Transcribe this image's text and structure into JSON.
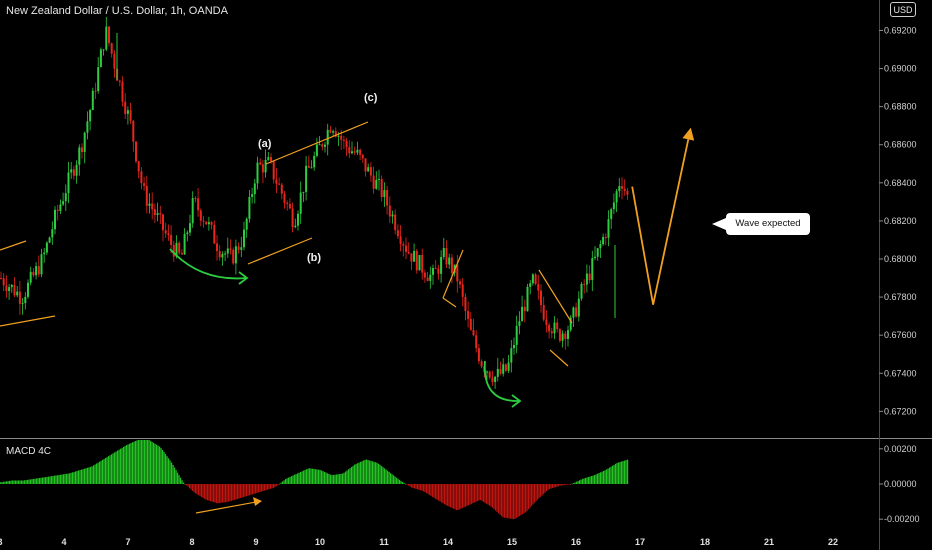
{
  "header": {
    "title": "New Zealand Dollar / U.S. Dollar, 1h, OANDA",
    "currency": "USD"
  },
  "indicator": {
    "name": "MACD 4C"
  },
  "annotations": {
    "callout": "Wave expected",
    "wave_a": "(a)",
    "wave_b": "(b)",
    "wave_c": "(c)"
  },
  "colors": {
    "bull": "#2ecc40",
    "bear": "#e8261c",
    "pattern": "#f0a020",
    "arrow_green": "#2ecc40",
    "macd_pos": "#22c322",
    "macd_neg": "#c0150f"
  },
  "chart_data": [
    {
      "type": "candlestick",
      "title": "New Zealand Dollar / U.S. Dollar, 1h, OANDA",
      "x_ticks": [
        "3",
        "4",
        "7",
        "8",
        "9",
        "10",
        "11",
        "14",
        "15",
        "16",
        "17",
        "18",
        "21",
        "22"
      ],
      "y_ticks": [
        "0.69200",
        "0.69000",
        "0.68800",
        "0.68600",
        "0.68400",
        "0.68200",
        "0.68000",
        "0.67800",
        "0.67600",
        "0.67400",
        "0.67200"
      ],
      "ylim": [
        0.6706,
        0.6936
      ],
      "path": [
        [
          3,
          0.679
        ],
        [
          3.5,
          0.678
        ],
        [
          4,
          0.68
        ],
        [
          4.3,
          0.6822
        ],
        [
          4.6,
          0.684
        ],
        [
          4.9,
          0.6858
        ],
        [
          5.2,
          0.6885
        ],
        [
          5.5,
          0.692
        ],
        [
          5.8,
          0.6895
        ],
        [
          6.1,
          0.687
        ],
        [
          6.4,
          0.6835
        ],
        [
          6.7,
          0.6823
        ],
        [
          7,
          0.681
        ],
        [
          7.3,
          0.68
        ],
        [
          7.6,
          0.683
        ],
        [
          7.9,
          0.682
        ],
        [
          8.2,
          0.6806
        ],
        [
          8.5,
          0.68
        ],
        [
          8.8,
          0.6812
        ],
        [
          9.1,
          0.6848
        ],
        [
          9.4,
          0.685
        ],
        [
          9.7,
          0.6835
        ],
        [
          10,
          0.682
        ],
        [
          10.3,
          0.6845
        ],
        [
          10.6,
          0.6858
        ],
        [
          10.9,
          0.6872
        ],
        [
          11.2,
          0.686
        ],
        [
          11.5,
          0.6855
        ],
        [
          11.8,
          0.6845
        ],
        [
          12.1,
          0.6835
        ],
        [
          12.4,
          0.682
        ],
        [
          12.7,
          0.6805
        ],
        [
          13,
          0.6797
        ],
        [
          13.3,
          0.679
        ],
        [
          13.6,
          0.6802
        ],
        [
          13.9,
          0.679
        ],
        [
          14.2,
          0.6762
        ],
        [
          14.5,
          0.6745
        ],
        [
          14.8,
          0.6738
        ],
        [
          15.1,
          0.6742
        ],
        [
          15.4,
          0.677
        ],
        [
          15.7,
          0.6788
        ],
        [
          16,
          0.677
        ],
        [
          16.3,
          0.676
        ],
        [
          16.6,
          0.6765
        ],
        [
          16.9,
          0.6785
        ],
        [
          17.2,
          0.68
        ],
        [
          17.5,
          0.6818
        ],
        [
          17.8,
          0.6843
        ],
        [
          18,
          0.683
        ]
      ],
      "forecast": [
        [
          18.1,
          0.6838
        ],
        [
          18.6,
          0.6776
        ],
        [
          19.5,
          0.6869
        ]
      ]
    },
    {
      "type": "bar",
      "title": "MACD 4C",
      "y_ticks": [
        "0.00200",
        "0.00000",
        "-0.00200"
      ],
      "ylim": [
        -0.0025,
        0.0025
      ],
      "values": [
        0.0001,
        0.0002,
        0.0002,
        0.0003,
        0.0004,
        0.0005,
        0.0006,
        0.0008,
        0.001,
        0.0014,
        0.0018,
        0.0022,
        0.0025,
        0.0025,
        0.0021,
        0.0012,
        0.0001,
        -0.0005,
        -0.0009,
        -0.0011,
        -0.001,
        -0.0008,
        -0.0006,
        -0.0004,
        -0.0002,
        0.0003,
        0.0006,
        0.0009,
        0.0008,
        0.0005,
        0.0006,
        0.0011,
        0.0014,
        0.0012,
        0.0007,
        0.0002,
        -0.0002,
        -0.0004,
        -0.0008,
        -0.0012,
        -0.0015,
        -0.0012,
        -0.0009,
        -0.0013,
        -0.0019,
        -0.002,
        -0.0016,
        -0.0009,
        -0.0003,
        -0.0001,
        0.0,
        0.0003,
        0.0005,
        0.0008,
        0.0012,
        0.0014
      ]
    }
  ]
}
